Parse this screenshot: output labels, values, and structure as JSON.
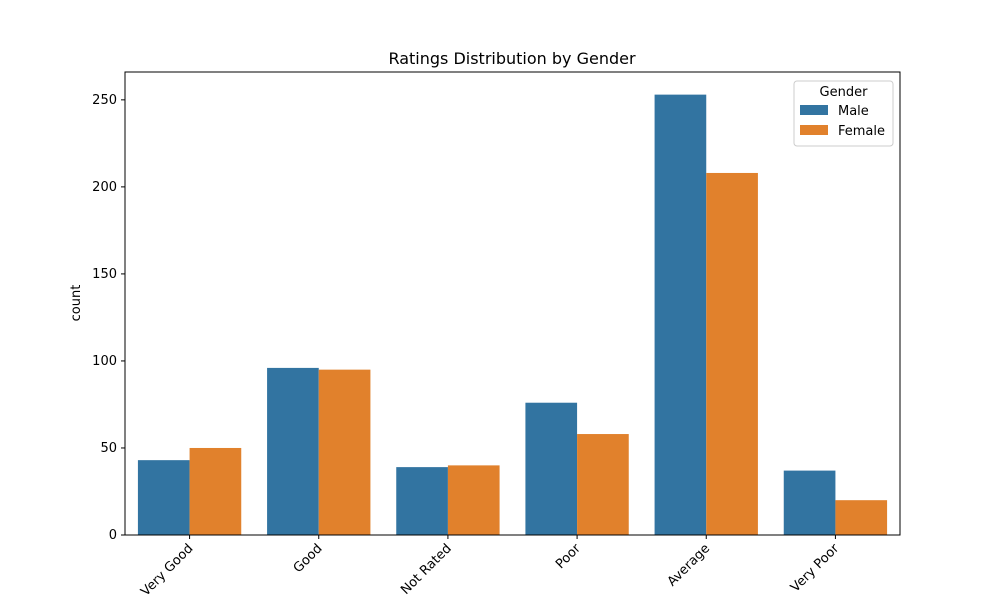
{
  "chart_data": {
    "type": "bar",
    "title": "Ratings Distribution by Gender",
    "xlabel": "",
    "ylabel": "count",
    "categories": [
      "Very Good",
      "Good",
      "Not Rated",
      "Poor",
      "Average",
      "Very Poor"
    ],
    "series": [
      {
        "name": "Male",
        "color": "#3274a1",
        "values": [
          43,
          96,
          39,
          76,
          253,
          37
        ]
      },
      {
        "name": "Female",
        "color": "#e1812c",
        "values": [
          50,
          95,
          40,
          58,
          208,
          20
        ]
      }
    ],
    "ylim": [
      0,
      266
    ],
    "yticks": [
      0,
      50,
      100,
      150,
      200,
      250
    ],
    "legend": {
      "title": "Gender",
      "placement": "top-right"
    },
    "grid": false
  }
}
